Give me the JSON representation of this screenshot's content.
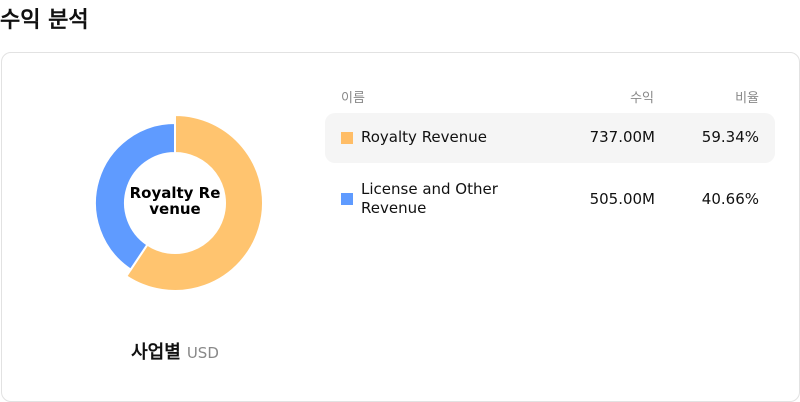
{
  "page_title": "수익 분석",
  "chart_data": {
    "type": "pie",
    "donut": true,
    "center_label": "Royalty Revenue",
    "caption": "사업별",
    "currency": "USD",
    "columns": [
      "이름",
      "수익",
      "비율"
    ],
    "slices": [
      {
        "name": "Royalty Revenue",
        "value": 737.0,
        "value_label": "737.00M",
        "percent": 59.34,
        "percent_label": "59.34%",
        "color": "#ffc46f",
        "highlighted": true
      },
      {
        "name": "License and Other Revenue",
        "value": 505.0,
        "value_label": "505.00M",
        "percent": 40.66,
        "percent_label": "40.66%",
        "color": "#5f9bff",
        "highlighted": false
      }
    ]
  }
}
